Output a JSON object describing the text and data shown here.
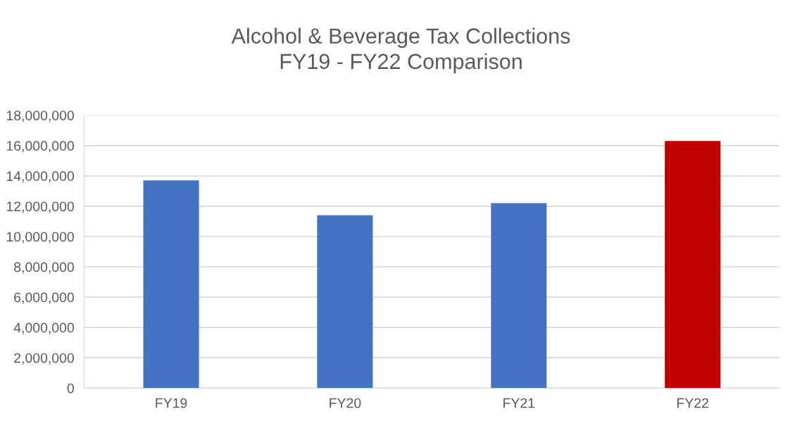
{
  "chart_data": {
    "type": "bar",
    "title": "Alcohol & Beverage Tax Collections\nFY19 - FY22 Comparison",
    "categories": [
      "FY19",
      "FY20",
      "FY21",
      "FY22"
    ],
    "values": [
      13700000,
      11400000,
      12200000,
      16300000
    ],
    "colors": [
      "#4472c4",
      "#4472c4",
      "#4472c4",
      "#c00000"
    ],
    "ylim": [
      0,
      18000000
    ],
    "yticks": [
      {
        "value": 0,
        "label": "0"
      },
      {
        "value": 2000000,
        "label": "2,000,000"
      },
      {
        "value": 4000000,
        "label": "4,000,000"
      },
      {
        "value": 6000000,
        "label": "6,000,000"
      },
      {
        "value": 8000000,
        "label": "8,000,000"
      },
      {
        "value": 10000000,
        "label": "10,000,000"
      },
      {
        "value": 12000000,
        "label": "12,000,000"
      },
      {
        "value": 14000000,
        "label": "14,000,000"
      },
      {
        "value": 16000000,
        "label": "16,000,000"
      },
      {
        "value": 18000000,
        "label": "18,000,000"
      }
    ],
    "grid": "y"
  }
}
